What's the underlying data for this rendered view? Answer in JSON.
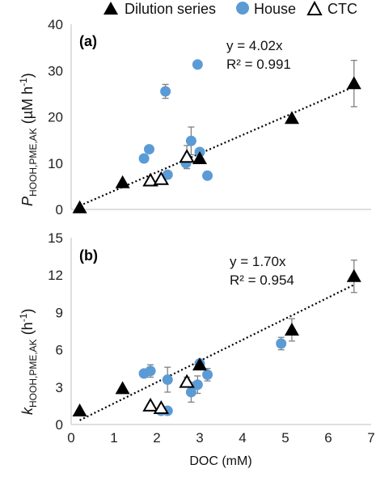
{
  "legend": [
    {
      "label": "Dilution series",
      "marker": "filled-triangle"
    },
    {
      "label": "House",
      "marker": "circle"
    },
    {
      "label": "CTC",
      "marker": "open-triangle"
    }
  ],
  "colors": {
    "house": "#5b9bd5",
    "triangle": "#000000",
    "errorbar": "#808080",
    "fit": "#000000"
  },
  "xaxis": {
    "label": "DOC (mM)",
    "ticks": [
      "0",
      "1",
      "2",
      "3",
      "4",
      "5",
      "6",
      "7"
    ],
    "range": [
      0,
      7
    ]
  },
  "chart_data": [
    {
      "type": "scatter",
      "panel_label": "(a)",
      "ylabel": {
        "main": "P",
        "sub": "HOOH,PME,AK",
        "unit": " (µM h",
        "sup": "-1",
        "close": ")"
      },
      "xlabel": "DOC (mM)",
      "xlim": [
        0,
        7
      ],
      "ylim": [
        0,
        40
      ],
      "yticks": [
        "0",
        "10",
        "20",
        "30",
        "40"
      ],
      "equation": "y = 4.02x",
      "r2": "R² = 0.991",
      "fit_slope": 4.02,
      "fit_x": [
        0.2,
        6.6
      ],
      "series": [
        {
          "name": "Dilution series",
          "marker": "filled-triangle",
          "points": [
            [
              0.2,
              0.4,
              0
            ],
            [
              1.2,
              5.8,
              0
            ],
            [
              3.0,
              11.0,
              0
            ],
            [
              5.15,
              19.7,
              0
            ],
            [
              6.6,
              27.2,
              5
            ]
          ]
        },
        {
          "name": "House",
          "marker": "circle",
          "points": [
            [
              1.7,
              11.0,
              0
            ],
            [
              1.82,
              13.0,
              0
            ],
            [
              2.2,
              25.5,
              1.5
            ],
            [
              2.25,
              7.5,
              0
            ],
            [
              2.68,
              10.0,
              0
            ],
            [
              2.8,
              14.8,
              3
            ],
            [
              2.95,
              31.3,
              0
            ],
            [
              3.0,
              12.4,
              0
            ],
            [
              3.18,
              7.3,
              0
            ]
          ]
        },
        {
          "name": "CTC",
          "marker": "open-triangle",
          "points": [
            [
              1.85,
              6.2,
              0
            ],
            [
              2.1,
              6.5,
              0
            ],
            [
              2.7,
              11.3,
              2.5
            ]
          ]
        }
      ]
    },
    {
      "type": "scatter",
      "panel_label": "(b)",
      "ylabel": {
        "main": "k",
        "sub": "HOOH,PME,AK",
        "unit": " (h",
        "sup": "-1",
        "close": ")"
      },
      "xlabel": "DOC (mM)",
      "xlim": [
        0,
        7
      ],
      "ylim": [
        0,
        15
      ],
      "yticks": [
        "0",
        "3",
        "6",
        "9",
        "12",
        "15"
      ],
      "equation": "y = 1.70x",
      "r2": "R² = 0.954",
      "fit_slope": 1.7,
      "fit_x": [
        0.2,
        6.6
      ],
      "series": [
        {
          "name": "Dilution series",
          "marker": "filled-triangle",
          "points": [
            [
              0.2,
              1.1,
              0
            ],
            [
              1.2,
              2.9,
              0
            ],
            [
              3.0,
              4.8,
              0.3
            ],
            [
              5.15,
              7.6,
              0.9
            ],
            [
              6.6,
              11.9,
              1.3
            ]
          ]
        },
        {
          "name": "House",
          "marker": "circle",
          "points": [
            [
              1.7,
              4.1,
              0
            ],
            [
              1.85,
              4.3,
              0.5
            ],
            [
              2.1,
              1.1,
              0
            ],
            [
              2.25,
              3.6,
              1.0
            ],
            [
              2.25,
              1.1,
              0
            ],
            [
              2.8,
              2.6,
              0.8
            ],
            [
              2.95,
              3.2,
              0.7
            ],
            [
              3.0,
              4.9,
              0
            ],
            [
              3.18,
              4.0,
              0.5
            ],
            [
              4.9,
              6.5,
              0.5
            ]
          ]
        },
        {
          "name": "CTC",
          "marker": "open-triangle",
          "points": [
            [
              1.85,
              1.5,
              0
            ],
            [
              2.1,
              1.3,
              0
            ],
            [
              2.7,
              3.4,
              0.4
            ]
          ]
        }
      ]
    }
  ]
}
